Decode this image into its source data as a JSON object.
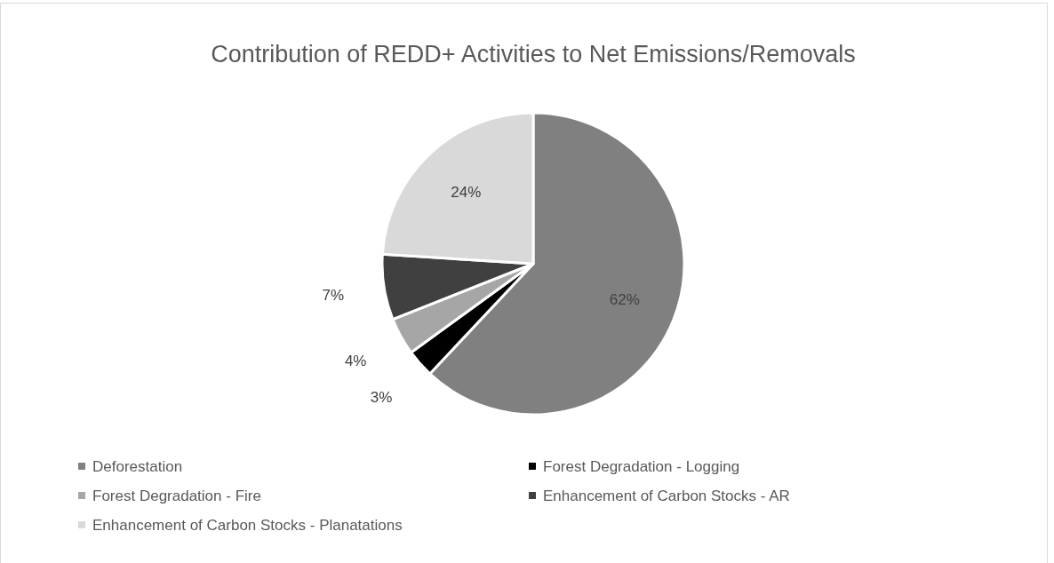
{
  "chart_data": {
    "type": "pie",
    "title": "Contribution of REDD+ Activities to Net Emissions/Removals",
    "categories": [
      "Deforestation",
      "Forest Degradation - Logging",
      "Forest Degradation - Fire",
      "Enhancement of Carbon Stocks - AR",
      "Enhancement of Carbon Stocks - Planatations"
    ],
    "values": [
      62,
      3,
      4,
      7,
      24
    ],
    "value_labels": [
      "62%",
      "3%",
      "4%",
      "7%",
      "24%"
    ],
    "colors": [
      "#808080",
      "#000000",
      "#a6a6a6",
      "#404040",
      "#d9d9d9"
    ],
    "legend": "bottom"
  }
}
